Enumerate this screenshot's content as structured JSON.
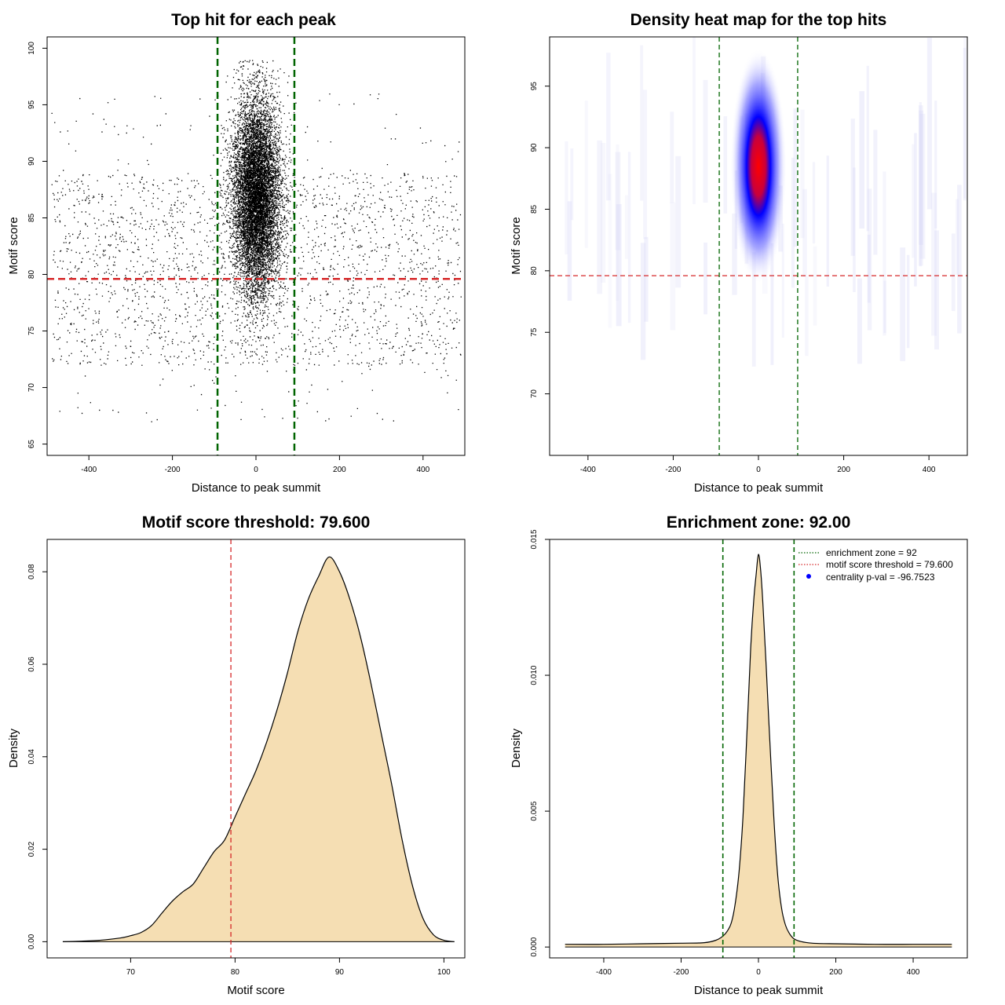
{
  "colors": {
    "scatter_point": "#000000",
    "green_line": "#006400",
    "red_line": "#d62728",
    "wheat_fill": "#f5deb3",
    "heat_blue": "#0000ff",
    "heat_red": "#ff0000"
  },
  "chart_data": [
    {
      "type": "scatter",
      "title": "Top hit for each peak",
      "xlabel": "Distance to peak summit",
      "ylabel": "Motif score",
      "xlim": [
        -500,
        500
      ],
      "ylim": [
        64,
        101
      ],
      "xticks": [
        -400,
        -200,
        0,
        200,
        400
      ],
      "yticks": [
        65,
        70,
        75,
        80,
        85,
        90,
        95,
        100
      ],
      "reference_lines": {
        "vertical": [
          -92,
          92
        ],
        "horizontal": [
          79.6
        ]
      },
      "point_model": {
        "core": {
          "x_center": 0,
          "x_sd": 28,
          "y_center": 87,
          "y_sd": 4.3,
          "count": 9000
        },
        "background": {
          "x_range": [
            -490,
            490
          ],
          "y_range": [
            67,
            96
          ],
          "count": 2300
        }
      }
    },
    {
      "type": "heatmap",
      "title": "Density heat map for the top hits",
      "xlabel": "Distance to peak summit",
      "ylabel": "Motif score",
      "xlim": [
        -490,
        490
      ],
      "ylim": [
        65,
        99
      ],
      "xticks": [
        -400,
        -200,
        0,
        200,
        400
      ],
      "yticks": [
        70,
        75,
        80,
        85,
        90,
        95
      ],
      "reference_lines": {
        "vertical": [
          -92,
          92
        ],
        "horizontal": [
          79.6
        ]
      },
      "density_peak": {
        "x": 0,
        "y": 88.5
      },
      "colormap": [
        "white",
        "blue",
        "red"
      ]
    },
    {
      "type": "area",
      "title": "Motif score threshold: 79.600",
      "xlabel": "Motif score",
      "ylabel": "Density",
      "xlim": [
        62,
        102
      ],
      "ylim": [
        -0.0035,
        0.087
      ],
      "xticks": [
        70,
        80,
        90,
        100
      ],
      "yticks": [
        0.0,
        0.02,
        0.04,
        0.06,
        0.08
      ],
      "ytick_labels": [
        "0.00",
        "0.02",
        "0.04",
        "0.06",
        "0.08"
      ],
      "reference_lines": {
        "vertical": [
          79.6
        ]
      },
      "x": [
        63.5,
        65,
        67,
        69,
        70,
        71,
        72,
        73,
        74,
        75,
        76,
        77,
        78,
        79,
        80,
        81,
        82,
        83,
        84,
        85,
        86,
        87,
        88,
        89,
        90,
        91,
        92,
        93,
        94,
        95,
        96,
        97,
        98,
        99,
        100,
        101
      ],
      "y": [
        0.0,
        0.0001,
        0.0003,
        0.0008,
        0.0013,
        0.002,
        0.0035,
        0.0062,
        0.0088,
        0.0108,
        0.0125,
        0.016,
        0.0195,
        0.022,
        0.027,
        0.032,
        0.037,
        0.043,
        0.05,
        0.058,
        0.067,
        0.074,
        0.079,
        0.0832,
        0.08,
        0.074,
        0.066,
        0.056,
        0.045,
        0.034,
        0.022,
        0.012,
        0.005,
        0.0015,
        0.0003,
        0.0
      ]
    },
    {
      "type": "area",
      "title": "Enrichment zone: 92.00",
      "xlabel": "Distance to peak summit",
      "ylabel": "Density",
      "xlim": [
        -540,
        540
      ],
      "ylim": [
        -0.0004,
        0.015
      ],
      "xticks": [
        -400,
        -200,
        0,
        200,
        400
      ],
      "yticks": [
        0.0,
        0.005,
        0.01,
        0.015
      ],
      "ytick_labels": [
        "0.000",
        "0.005",
        "0.010",
        "0.015"
      ],
      "reference_lines": {
        "vertical": [
          -92,
          92
        ]
      },
      "x": [
        -500,
        -400,
        -300,
        -200,
        -140,
        -110,
        -92,
        -80,
        -70,
        -60,
        -50,
        -40,
        -30,
        -20,
        -12,
        -6,
        0,
        6,
        12,
        20,
        30,
        40,
        50,
        60,
        70,
        80,
        92,
        110,
        140,
        200,
        300,
        400,
        500
      ],
      "y": [
        0.0001,
        0.0001,
        0.00012,
        0.00014,
        0.00016,
        0.00025,
        0.0004,
        0.0006,
        0.0009,
        0.0016,
        0.0028,
        0.0048,
        0.0078,
        0.011,
        0.0128,
        0.0137,
        0.01445,
        0.0138,
        0.0125,
        0.0103,
        0.0074,
        0.0047,
        0.0026,
        0.0014,
        0.0008,
        0.0005,
        0.0003,
        0.0002,
        0.00014,
        0.00012,
        0.0001,
        0.0001,
        0.0001
      ],
      "legend": {
        "placement": "top-right",
        "entries": [
          {
            "label": "enrichment zone = 92",
            "style": "dotted",
            "color": "#006400"
          },
          {
            "label": "motif score threshold = 79.600",
            "style": "dotted",
            "color": "#d62728"
          },
          {
            "label": "centrality p-val = -96.7523",
            "style": "point",
            "color": "#0000ff"
          }
        ]
      }
    }
  ]
}
